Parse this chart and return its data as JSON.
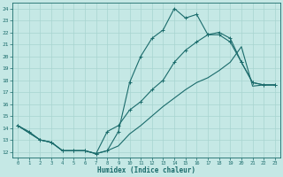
{
  "xlabel": "Humidex (Indice chaleur)",
  "xlim": [
    -0.5,
    23.5
  ],
  "ylim": [
    11.5,
    24.5
  ],
  "xticks": [
    0,
    1,
    2,
    3,
    4,
    5,
    6,
    7,
    8,
    9,
    10,
    11,
    12,
    13,
    14,
    15,
    16,
    17,
    18,
    19,
    20,
    21,
    22,
    23
  ],
  "yticks": [
    12,
    13,
    14,
    15,
    16,
    17,
    18,
    19,
    20,
    21,
    22,
    23,
    24
  ],
  "bg_color": "#c5e8e5",
  "line_color": "#1a6b6b",
  "grid_color": "#a8d4d0",
  "line1_x": [
    0,
    1,
    2,
    3,
    4,
    5,
    6,
    7,
    8,
    9,
    10,
    11,
    12,
    13,
    14,
    15,
    16,
    17,
    18,
    19,
    20,
    21,
    22,
    23
  ],
  "line1_y": [
    14.2,
    13.7,
    13.0,
    12.8,
    12.1,
    12.1,
    12.1,
    11.85,
    12.1,
    13.7,
    17.8,
    20.0,
    21.5,
    22.2,
    24.0,
    23.2,
    23.5,
    21.8,
    21.8,
    21.2,
    19.5,
    17.8,
    17.6,
    17.6
  ],
  "line2_x": [
    0,
    2,
    3,
    4,
    5,
    6,
    7,
    8,
    9,
    10,
    11,
    12,
    13,
    14,
    15,
    16,
    17,
    18,
    19,
    20,
    21,
    22,
    23
  ],
  "line2_y": [
    14.2,
    13.0,
    12.8,
    12.1,
    12.1,
    12.1,
    11.85,
    13.7,
    14.2,
    15.5,
    16.2,
    17.2,
    18.0,
    19.5,
    20.5,
    21.2,
    21.8,
    22.0,
    21.5,
    19.5,
    17.8,
    17.6,
    17.6
  ],
  "line3_x": [
    0,
    2,
    3,
    4,
    5,
    6,
    7,
    8,
    9,
    10,
    11,
    12,
    13,
    14,
    15,
    16,
    17,
    18,
    19,
    20,
    21,
    22,
    23
  ],
  "line3_y": [
    14.2,
    13.0,
    12.8,
    12.1,
    12.1,
    12.1,
    11.85,
    12.1,
    12.5,
    13.5,
    14.2,
    15.0,
    15.8,
    16.5,
    17.2,
    17.8,
    18.2,
    18.8,
    19.5,
    20.8,
    17.5,
    17.6,
    17.6
  ]
}
